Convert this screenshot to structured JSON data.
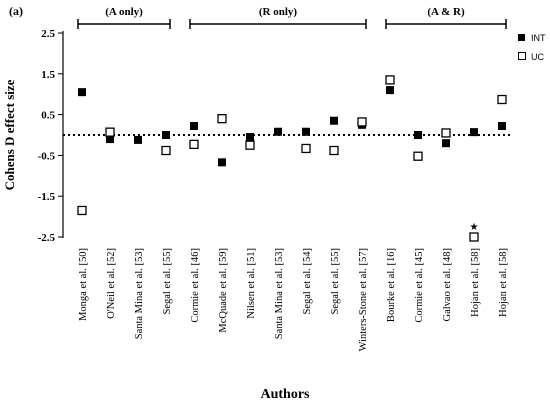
{
  "chart_data": {
    "type": "scatter",
    "panel_label": "(a)",
    "xlabel": "Authors",
    "ylabel": "Cohens D effect size",
    "ylim": [
      -2.5,
      2.5
    ],
    "y_ticks": [
      "2.5",
      "1.5",
      "0.5",
      "-0.5",
      "-1.5",
      "-2.5"
    ],
    "zero_reference_line": 0,
    "legend_position": "top-right",
    "categories": [
      "Monga et al. [50]",
      "O'Neil et al. [52]",
      "Santa Mina et al. [53]",
      "Segal et al. [55]",
      "Cormie et al. [46]",
      "McQuade et al. [59]",
      "Nilsen et al. [51]",
      "Santa Mina et al. [53]",
      "Segal et al. [54]",
      "Segal et al. [55]",
      "Winters-Stone et al. [57]",
      "Bourke et al. [16]",
      "Cormie et al. [45]",
      "Galvao et al. [48]",
      "Hojan et al. [58]",
      "Hojan et al. [58]"
    ],
    "groups": [
      {
        "label": "(A only)",
        "from": 0,
        "to": 3
      },
      {
        "label": "(R only)",
        "from": 4,
        "to": 10
      },
      {
        "label": "(A & R)",
        "from": 11,
        "to": 15
      }
    ],
    "series": [
      {
        "name": "INT",
        "marker": "filled-square",
        "values": [
          1.05,
          -0.1,
          -0.12,
          0.0,
          0.22,
          -0.67,
          -0.05,
          0.08,
          0.08,
          0.35,
          0.25,
          1.1,
          0.0,
          -0.2,
          0.07,
          0.22
        ]
      },
      {
        "name": "UC",
        "marker": "open-square",
        "values": [
          -1.85,
          0.07,
          null,
          -0.38,
          -0.23,
          0.4,
          -0.25,
          null,
          -0.33,
          -0.38,
          0.32,
          1.35,
          -0.52,
          0.05,
          -2.5,
          0.87
        ]
      }
    ],
    "annotation": {
      "symbol": "★",
      "category_index": 14,
      "y": -2.25
    }
  }
}
